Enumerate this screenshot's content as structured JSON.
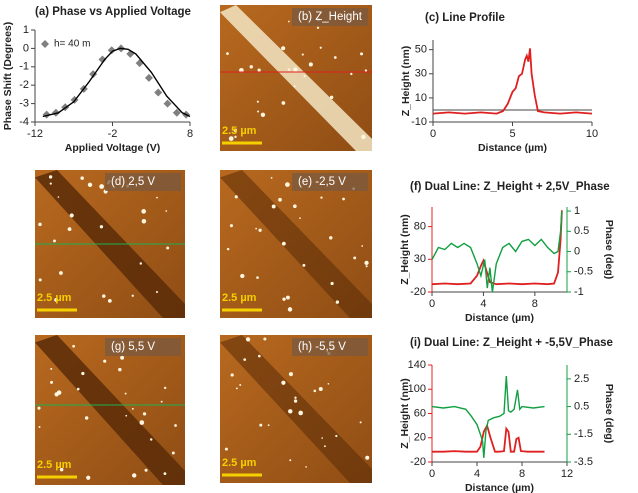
{
  "chart_data": [
    {
      "type": "scatter",
      "title": "(a) Phase vs Applied Voltage",
      "x_label": "Applied Voltage (V)",
      "y_label": "Phase Shift (Degrees)",
      "xlim": [
        -12,
        8
      ],
      "xticks": [
        -12,
        -2,
        8
      ],
      "ylim": [
        -4,
        1
      ],
      "yticks": [
        1,
        0,
        -1,
        -2,
        -3,
        -4
      ],
      "series": [
        {
          "name": "h= 40 m",
          "color": "#808080",
          "marker": "diamond",
          "line": false,
          "x": [
            -10.5,
            -9.3,
            -8.1,
            -6.9,
            -5.7,
            -4.5,
            -3.3,
            -2.1,
            -0.9,
            0.3,
            1.5,
            2.7,
            3.9,
            5.1,
            6.3,
            7.5
          ],
          "values": [
            -3.6,
            -3.5,
            -3.2,
            -2.8,
            -2.2,
            -1.4,
            -0.6,
            -0.1,
            0.0,
            -0.3,
            -0.8,
            -1.6,
            -2.4,
            -3.0,
            -3.5,
            -3.6
          ]
        },
        {
          "color": "#000000",
          "line": true,
          "x": [
            -11,
            -9,
            -7,
            -5,
            -3,
            -2,
            -1,
            0,
            1,
            3,
            5,
            7,
            8
          ],
          "values": [
            -3.7,
            -3.5,
            -2.9,
            -1.8,
            -0.6,
            -0.15,
            0.0,
            -0.05,
            -0.3,
            -1.3,
            -2.6,
            -3.5,
            -3.7
          ]
        }
      ]
    },
    {
      "type": "line",
      "title": "(c) Line Profile",
      "x_label": "Distance (µm)",
      "y_label": "Z_Height (nm)",
      "xlim": [
        0,
        10
      ],
      "xticks": [
        0,
        5,
        10
      ],
      "ylim": [
        -10,
        58
      ],
      "yticks": [
        -10,
        10,
        30,
        50
      ],
      "series": [
        {
          "color": "#e02020",
          "line": true,
          "x": [
            0,
            1,
            2,
            3,
            4,
            4.4,
            4.7,
            5.0,
            5.2,
            5.4,
            5.6,
            5.8,
            5.9,
            6.0,
            6.1,
            6.2,
            6.4,
            6.6,
            7,
            8,
            9,
            10
          ],
          "values": [
            -3,
            -2,
            -3,
            -2,
            -3,
            -1,
            5,
            15,
            18,
            28,
            30,
            42,
            45,
            40,
            51,
            30,
            12,
            -1,
            -2,
            -3,
            -2,
            -3
          ]
        }
      ]
    },
    {
      "type": "line",
      "title": "(f) Dual Line: Z_Height + 2,5V_Phase",
      "x_label": "Distance (µm)",
      "y_label": "Z_Height (nm)",
      "y2_label": "Phase (deg)",
      "xlim": [
        0,
        10.5
      ],
      "xticks": [
        0,
        4,
        8
      ],
      "ylim": [
        -20,
        110
      ],
      "yticks": [
        -20,
        30,
        80
      ],
      "y2lim": [
        -1,
        1.1
      ],
      "y2ticks": [
        -1,
        -0.5,
        0,
        0.5,
        1
      ],
      "series": [
        {
          "color": "#e02020",
          "line": true,
          "x": [
            0,
            1,
            2,
            3,
            3.5,
            3.8,
            4.0,
            4.2,
            4.5,
            5,
            6,
            7,
            8,
            9,
            9.5,
            9.8,
            10,
            10.1
          ],
          "values": [
            -8,
            -7,
            -8,
            -7,
            5,
            20,
            28,
            15,
            -5,
            -8,
            -7,
            -8,
            -7,
            -8,
            -7,
            10,
            60,
            105
          ]
        },
        {
          "color": "#10a040",
          "line": true,
          "axis": "y2",
          "x": [
            0,
            0.5,
            1,
            1.5,
            2,
            2.5,
            3,
            3.5,
            3.8,
            4.1,
            4.3,
            4.5,
            4.7,
            5,
            5.5,
            6,
            6.5,
            7,
            7.5,
            8,
            8.5,
            9,
            9.5,
            9.8,
            10,
            10.1
          ],
          "values": [
            -0.2,
            0.1,
            0.05,
            0.2,
            0.1,
            0.2,
            0.1,
            -0.3,
            -0.6,
            -0.2,
            -0.9,
            -0.4,
            -1.0,
            -0.3,
            0.1,
            0.2,
            0.0,
            0.25,
            0.3,
            0.15,
            0.3,
            0.1,
            -0.05,
            0.0,
            0.5,
            1.0
          ]
        }
      ]
    },
    {
      "type": "line",
      "title": "(i) Dual Line: Z_Height + -5,5V_Phase",
      "x_label": "Distance (µm)",
      "y_label": "Z_Height (nm)",
      "y2_label": "Phase (deg)",
      "xlim": [
        0,
        12
      ],
      "xticks": [
        0,
        4,
        8,
        12
      ],
      "ylim": [
        -20,
        140
      ],
      "yticks": [
        -20,
        20,
        60,
        100,
        140
      ],
      "y2lim": [
        -3.5,
        3.5
      ],
      "y2ticks": [
        -3.5,
        -1.5,
        0.5,
        2.5
      ],
      "series": [
        {
          "color": "#e02020",
          "line": true,
          "x": [
            0,
            1,
            2,
            3,
            4,
            4.3,
            4.6,
            4.9,
            5.2,
            5.6,
            6,
            6.4,
            6.6,
            6.8,
            7,
            7.3,
            7.5,
            7.7,
            7.9,
            8.5,
            9,
            10
          ],
          "values": [
            -3,
            -3,
            -2,
            -3,
            -3,
            5,
            30,
            40,
            20,
            -3,
            -3,
            -2,
            35,
            30,
            -3,
            -3,
            18,
            20,
            -2,
            -3,
            -3,
            -3
          ]
        },
        {
          "color": "#10a040",
          "line": true,
          "axis": "y2",
          "x": [
            0,
            1,
            2,
            3,
            3.5,
            4,
            4.3,
            4.5,
            4.6,
            4.8,
            5,
            5.5,
            6,
            6.4,
            6.6,
            6.8,
            7,
            7.3,
            7.6,
            7.8,
            8,
            9,
            10
          ],
          "values": [
            0.5,
            0.4,
            0.5,
            0.3,
            -0.2,
            -0.8,
            -1.5,
            -2.0,
            -3.2,
            -1.2,
            -0.5,
            -0.3,
            -0.2,
            0.0,
            2.7,
            0.2,
            0.1,
            0.3,
            1.7,
            0.3,
            0.5,
            0.4,
            0.5
          ]
        }
      ]
    }
  ],
  "images": [
    {
      "label": "(b) Z_Height",
      "scale": "2.5 µm"
    },
    {
      "label": "(d) 2,5 V",
      "scale": "2.5 µm"
    },
    {
      "label": "(e) -2,5 V",
      "scale": "2.5 µm"
    },
    {
      "label": "(g) 5,5 V",
      "scale": "2.5 µm"
    },
    {
      "label": "(h) -5,5 V",
      "scale": "2.5 µm"
    }
  ]
}
